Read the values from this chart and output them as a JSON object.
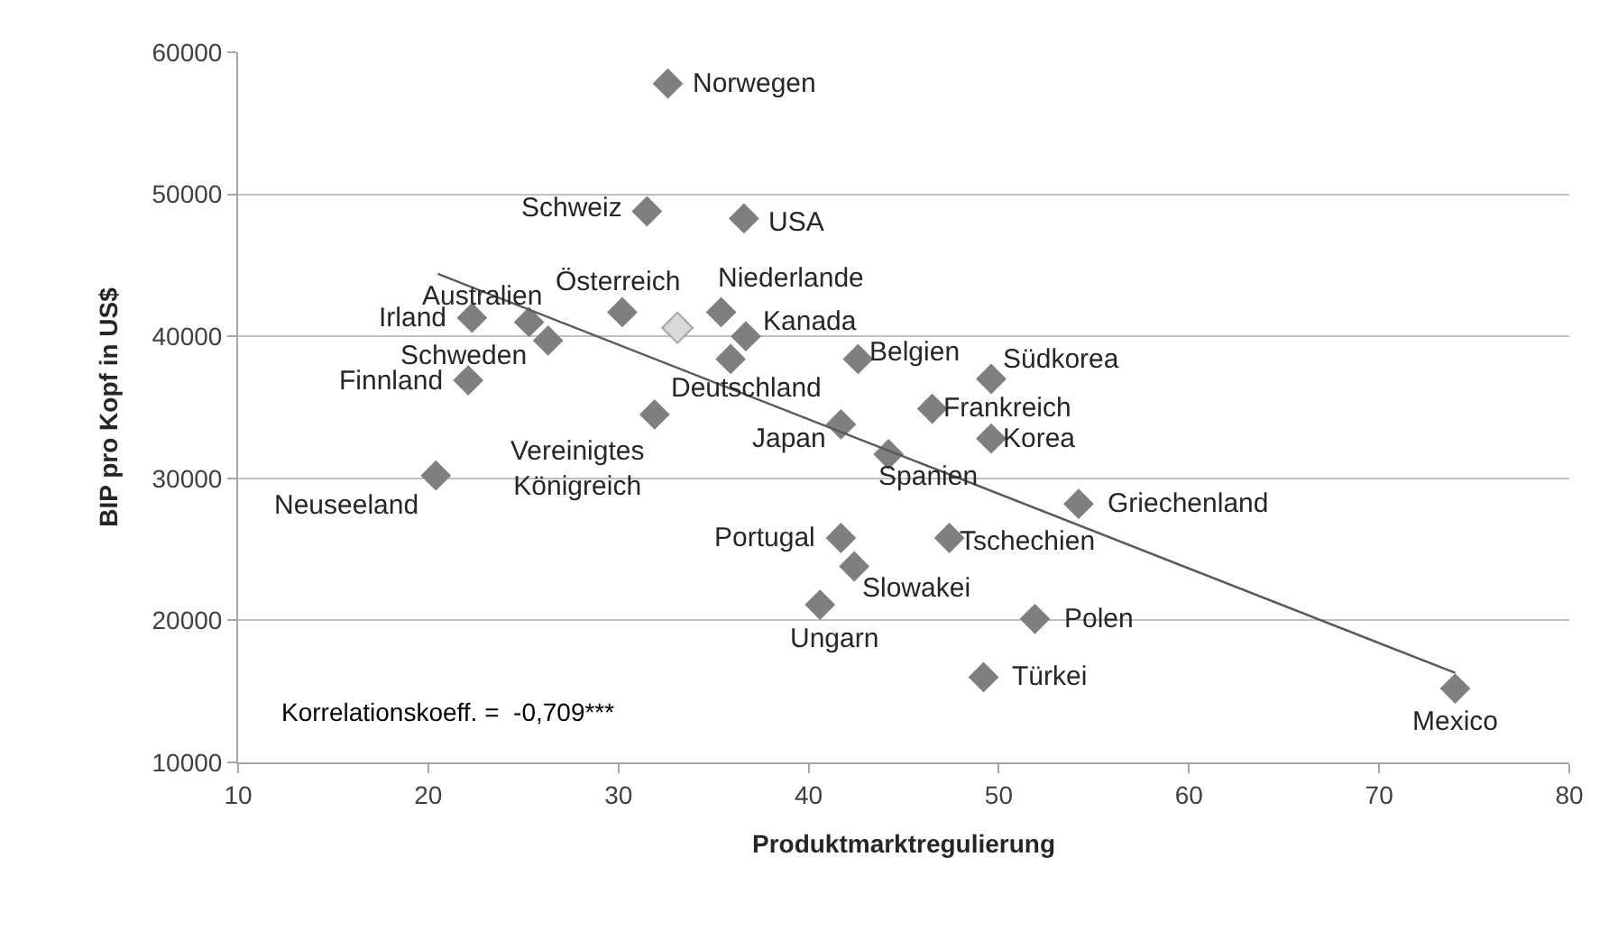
{
  "chart_data": {
    "type": "scatter",
    "xlabel": "Produktmarktregulierung",
    "ylabel": "BIP pro Kopf in US$",
    "xlim": [
      10,
      80
    ],
    "xticks": [
      10,
      20,
      30,
      40,
      50,
      60,
      70,
      80
    ],
    "ylim": [
      10000,
      60000
    ],
    "yticks": [
      10000,
      20000,
      30000,
      40000,
      50000,
      60000
    ],
    "grid": "y",
    "marker": "diamond",
    "series": [
      {
        "color": "#7f7f7f",
        "x": [
          32.6,
          31.5,
          36.6,
          25.3,
          22.3,
          26.3,
          30.2,
          35.4,
          36.7,
          35.9,
          42.6,
          22.1,
          49.6,
          46.5,
          49.6,
          44.2,
          54.2,
          47.4,
          51.9,
          49.2,
          74.0,
          31.9,
          41.7,
          20.4,
          41.7,
          42.4,
          40.6
        ],
        "values": [
          57800,
          48800,
          48300,
          41000,
          41300,
          39700,
          41700,
          41700,
          40000,
          38400,
          38400,
          36900,
          37000,
          34900,
          32800,
          31700,
          28200,
          25800,
          20100,
          16000,
          15200,
          34500,
          33800,
          30200,
          25800,
          23800,
          21100
        ]
      },
      {
        "color": "#d9d9d9",
        "x": [
          33.1
        ],
        "values": [
          40600
        ]
      },
      {
        "type": "line",
        "color": "#595959",
        "line_style": "solid",
        "marker": "none",
        "x": [
          20.5,
          74.0
        ],
        "values": [
          44400,
          16300
        ]
      }
    ],
    "annotations": [
      {
        "text": "Norwegen",
        "x": 32.6,
        "y": 57800
      },
      {
        "text": "Schweiz",
        "x": 31.5,
        "y": 48800
      },
      {
        "text": "USA",
        "x": 36.6,
        "y": 48300
      },
      {
        "text": "Australien",
        "x": 25.3,
        "y": 41000
      },
      {
        "text": "Irland",
        "x": 22.3,
        "y": 41300
      },
      {
        "text": "Schweden",
        "x": 26.3,
        "y": 39700
      },
      {
        "text": "Österreich",
        "x": 30.2,
        "y": 41700
      },
      {
        "text": "Niederlande",
        "x": 35.4,
        "y": 41700
      },
      {
        "text": "Kanada",
        "x": 36.7,
        "y": 40000
      },
      {
        "text": "Deutschland",
        "x": 35.9,
        "y": 38400
      },
      {
        "text": "Belgien",
        "x": 42.6,
        "y": 38400
      },
      {
        "text": "Finnland",
        "x": 22.1,
        "y": 36900
      },
      {
        "text": "Südkorea",
        "x": 49.6,
        "y": 37000
      },
      {
        "text": "Frankreich",
        "x": 46.5,
        "y": 34900
      },
      {
        "text": "Korea",
        "x": 49.6,
        "y": 32800
      },
      {
        "text": "Spanien",
        "x": 44.2,
        "y": 31700
      },
      {
        "text": "Griechenland",
        "x": 54.2,
        "y": 28200
      },
      {
        "text": "Tschechien",
        "x": 47.4,
        "y": 25800
      },
      {
        "text": "Polen",
        "x": 51.9,
        "y": 20100
      },
      {
        "text": "Türkei",
        "x": 49.2,
        "y": 16000
      },
      {
        "text": "Mexico",
        "x": 74.0,
        "y": 15200
      },
      {
        "text": "Vereinigtes Königreich",
        "x": 31.9,
        "y": 34500
      },
      {
        "text": "Japan",
        "x": 41.7,
        "y": 33800
      },
      {
        "text": "Neuseeland",
        "x": 20.4,
        "y": 30200
      },
      {
        "text": "Portugal",
        "x": 41.7,
        "y": 25800
      },
      {
        "text": "Slowakei",
        "x": 42.4,
        "y": 23800
      },
      {
        "text": "Ungarn",
        "x": 40.6,
        "y": 21100
      },
      "Korrelationskoeff. =  -0,709***"
    ]
  }
}
